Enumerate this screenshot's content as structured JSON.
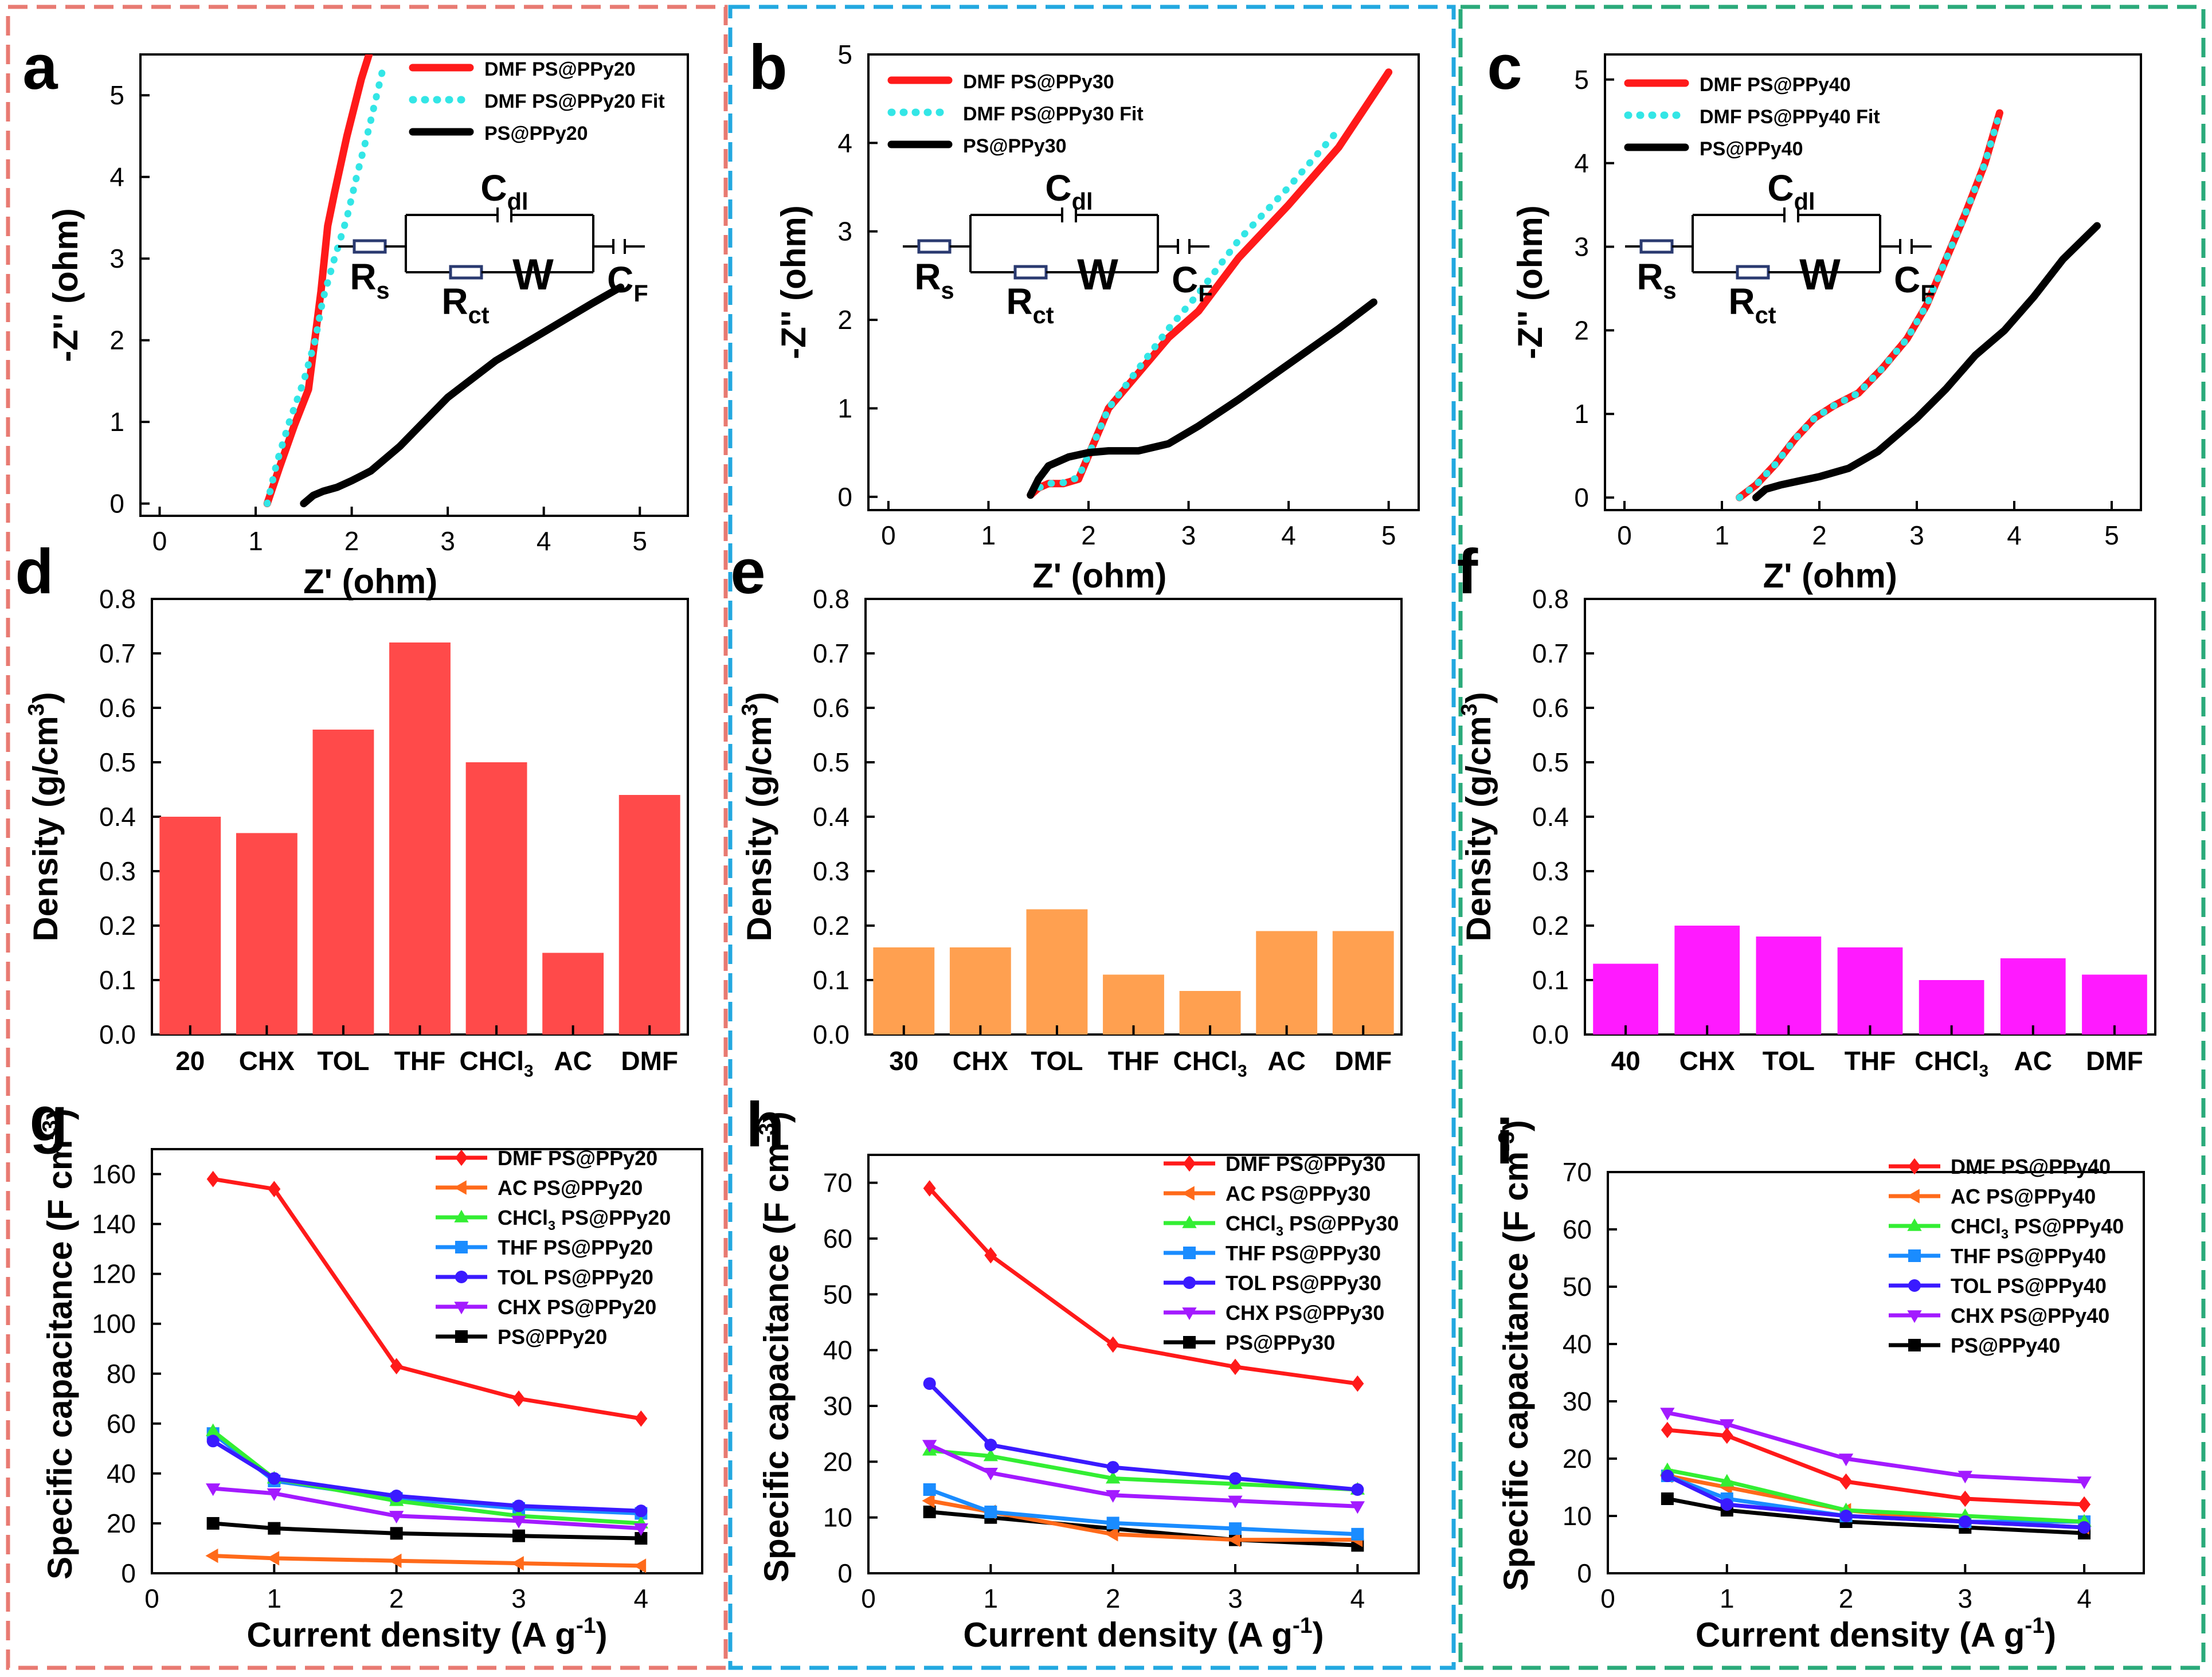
{
  "colors": {
    "red": "#ff1a1a",
    "cyan": "#33e6e6",
    "black": "#000000",
    "orange": "#ff6a1a",
    "green": "#33ee33",
    "blue": "#1a8cff",
    "navy": "#3a1aff",
    "violet": "#a31aff",
    "bar_d": "#ff4a4a",
    "bar_e": "#ffa050",
    "bar_f": "#ff1aff",
    "frame_left": "#e87a72",
    "frame_mid": "#22a8e0",
    "frame_right": "#2aaa7a"
  },
  "chart_data": [
    {
      "id": "a",
      "type": "line",
      "panel_label": "a",
      "xlabel": "Z' (ohm)",
      "ylabel": "-Z'' (ohm)",
      "xlim": [
        -0.2,
        5.5
      ],
      "ylim": [
        -0.15,
        5.5
      ],
      "xticks": [
        "0",
        "1",
        "2",
        "3",
        "4",
        "5"
      ],
      "yticks": [
        "0",
        "1",
        "2",
        "3",
        "4",
        "5"
      ],
      "series": [
        {
          "name": "DMF PS@PPy20",
          "style": "red",
          "x": [
            1.12,
            1.25,
            1.4,
            1.55,
            1.68,
            1.75,
            1.82,
            1.95,
            2.1,
            2.18
          ],
          "y": [
            0,
            0.45,
            0.95,
            1.4,
            2.6,
            3.4,
            3.8,
            4.5,
            5.2,
            5.5
          ]
        },
        {
          "name": "DMF PS@PPy20 Fit",
          "style": "cyan",
          "x": [
            1.12,
            1.22,
            1.35,
            1.5,
            1.62,
            1.7,
            1.82,
            1.95,
            2.05,
            2.18,
            2.32
          ],
          "y": [
            0,
            0.5,
            1.0,
            1.5,
            2.0,
            2.5,
            3.0,
            3.5,
            4.0,
            4.6,
            5.3
          ]
        },
        {
          "name": "PS@PPy20",
          "style": "black",
          "x": [
            1.5,
            1.6,
            1.7,
            1.85,
            2.0,
            2.2,
            2.5,
            3.0,
            3.5,
            4.0,
            4.5,
            4.8
          ],
          "y": [
            0,
            0.1,
            0.15,
            0.2,
            0.28,
            0.4,
            0.7,
            1.3,
            1.75,
            2.1,
            2.45,
            2.65
          ]
        }
      ],
      "circuit": {
        "R1": "R",
        "R1sub": "s",
        "C1": "C",
        "C1sub": "dl",
        "R2": "R",
        "R2sub": "ct",
        "W": "W",
        "C2": "C",
        "C2sub": "F"
      }
    },
    {
      "id": "b",
      "type": "line",
      "panel_label": "b",
      "xlabel": "Z' (ohm)",
      "ylabel": "-Z'' (ohm)",
      "xlim": [
        -0.2,
        5.3
      ],
      "ylim": [
        -0.15,
        5.0
      ],
      "xticks": [
        "0",
        "1",
        "2",
        "3",
        "4",
        "5"
      ],
      "yticks": [
        "0",
        "1",
        "2",
        "3",
        "4",
        "5"
      ],
      "series": [
        {
          "name": "DMF PS@PPy30",
          "style": "red",
          "x": [
            1.42,
            1.5,
            1.6,
            1.75,
            1.9,
            2.05,
            2.2,
            2.5,
            2.8,
            3.1,
            3.5,
            4.0,
            4.5,
            5.0
          ],
          "y": [
            0.02,
            0.1,
            0.15,
            0.15,
            0.2,
            0.6,
            1.0,
            1.4,
            1.8,
            2.1,
            2.7,
            3.3,
            3.95,
            4.8
          ]
        },
        {
          "name": "DMF PS@PPy30 Fit",
          "style": "cyan",
          "x": [
            1.42,
            1.5,
            1.6,
            1.75,
            1.9,
            2.05,
            2.2,
            2.5,
            2.8,
            3.1,
            3.5,
            4.0,
            4.5
          ],
          "y": [
            0.02,
            0.1,
            0.15,
            0.16,
            0.22,
            0.6,
            1.0,
            1.45,
            1.9,
            2.3,
            2.9,
            3.5,
            4.15
          ]
        },
        {
          "name": "PS@PPy30",
          "style": "black",
          "x": [
            1.42,
            1.5,
            1.6,
            1.8,
            2.0,
            2.2,
            2.5,
            2.8,
            3.1,
            3.5,
            4.0,
            4.5,
            4.85
          ],
          "y": [
            0.02,
            0.2,
            0.35,
            0.45,
            0.5,
            0.52,
            0.52,
            0.6,
            0.8,
            1.1,
            1.5,
            1.9,
            2.2
          ]
        }
      ],
      "circuit": {
        "R1": "R",
        "R1sub": "s",
        "C1": "C",
        "C1sub": "dl",
        "R2": "R",
        "R2sub": "ct",
        "W": "W",
        "C2": "C",
        "C2sub": "F"
      }
    },
    {
      "id": "c",
      "type": "line",
      "panel_label": "c",
      "xlabel": "Z' (ohm)",
      "ylabel": "-Z'' (ohm)",
      "xlim": [
        -0.2,
        5.3
      ],
      "ylim": [
        -0.15,
        5.3
      ],
      "xticks": [
        "0",
        "1",
        "2",
        "3",
        "4",
        "5"
      ],
      "yticks": [
        "0",
        "1",
        "2",
        "3",
        "4",
        "5"
      ],
      "series": [
        {
          "name": "DMF PS@PPy40",
          "style": "red",
          "x": [
            1.18,
            1.35,
            1.55,
            1.75,
            1.95,
            2.15,
            2.4,
            2.65,
            2.9,
            3.1,
            3.3,
            3.5,
            3.7,
            3.85
          ],
          "y": [
            0,
            0.15,
            0.4,
            0.7,
            0.95,
            1.1,
            1.25,
            1.55,
            1.9,
            2.3,
            2.85,
            3.4,
            4.0,
            4.6
          ]
        },
        {
          "name": "DMF PS@PPy40 Fit",
          "style": "cyan",
          "x": [
            1.18,
            1.35,
            1.55,
            1.75,
            1.95,
            2.15,
            2.4,
            2.65,
            2.9,
            3.1,
            3.3,
            3.5,
            3.7,
            3.85
          ],
          "y": [
            0,
            0.15,
            0.4,
            0.7,
            0.95,
            1.1,
            1.25,
            1.55,
            1.9,
            2.3,
            2.85,
            3.4,
            4.0,
            4.6
          ]
        },
        {
          "name": "PS@PPy40",
          "style": "black",
          "x": [
            1.35,
            1.45,
            1.6,
            1.8,
            2.0,
            2.3,
            2.6,
            3.0,
            3.3,
            3.6,
            3.9,
            4.2,
            4.5,
            4.85
          ],
          "y": [
            0,
            0.1,
            0.15,
            0.2,
            0.25,
            0.35,
            0.55,
            0.95,
            1.3,
            1.7,
            2.0,
            2.4,
            2.85,
            3.25
          ]
        }
      ],
      "circuit": {
        "R1": "R",
        "R1sub": "s",
        "C1": "C",
        "C1sub": "dl",
        "R2": "R",
        "R2sub": "ct",
        "W": "W",
        "C2": "C",
        "C2sub": "F"
      }
    },
    {
      "id": "d",
      "type": "bar",
      "panel_label": "d",
      "ylabel": "Density (g/cm",
      "ylabel_sup": "3",
      "ylabel_end": ")",
      "ylim": [
        0,
        0.8
      ],
      "yticks": [
        "0.0",
        "0.1",
        "0.2",
        "0.3",
        "0.4",
        "0.5",
        "0.6",
        "0.7",
        "0.8"
      ],
      "categories": [
        "20",
        "CHX",
        "TOL",
        "THF",
        "CHCl",
        "AC",
        "DMF"
      ],
      "category_sub": [
        "",
        "",
        "",
        "",
        "3",
        "",
        ""
      ],
      "values": [
        0.4,
        0.37,
        0.56,
        0.72,
        0.5,
        0.15,
        0.44
      ],
      "bar_color": "bar_d"
    },
    {
      "id": "e",
      "type": "bar",
      "panel_label": "e",
      "ylabel": "Density (g/cm",
      "ylabel_sup": "3",
      "ylabel_end": ")",
      "ylim": [
        0,
        0.8
      ],
      "yticks": [
        "0.0",
        "0.1",
        "0.2",
        "0.3",
        "0.4",
        "0.5",
        "0.6",
        "0.7",
        "0.8"
      ],
      "categories": [
        "30",
        "CHX",
        "TOL",
        "THF",
        "CHCl",
        "AC",
        "DMF"
      ],
      "category_sub": [
        "",
        "",
        "",
        "",
        "3",
        "",
        ""
      ],
      "values": [
        0.16,
        0.16,
        0.23,
        0.11,
        0.08,
        0.19,
        0.19
      ],
      "bar_color": "bar_e"
    },
    {
      "id": "f",
      "type": "bar",
      "panel_label": "f",
      "ylabel": "Density (g/cm",
      "ylabel_sup": "3",
      "ylabel_end": ")",
      "ylim": [
        0,
        0.8
      ],
      "yticks": [
        "0.0",
        "0.1",
        "0.2",
        "0.3",
        "0.4",
        "0.5",
        "0.6",
        "0.7",
        "0.8"
      ],
      "categories": [
        "40",
        "CHX",
        "TOL",
        "THF",
        "CHCl",
        "AC",
        "DMF"
      ],
      "category_sub": [
        "",
        "",
        "",
        "",
        "3",
        "",
        ""
      ],
      "values": [
        0.13,
        0.2,
        0.18,
        0.16,
        0.1,
        0.14,
        0.11
      ],
      "bar_color": "bar_f"
    },
    {
      "id": "g",
      "type": "line",
      "panel_label": "g",
      "xlabel": "Current density (A g",
      "xlabel_sup": "-1",
      "xlabel_end": ")",
      "ylabel": "Specific capacitance (F cm",
      "ylabel_sup": "-3",
      "ylabel_end": ")",
      "xlim": [
        0,
        4.5
      ],
      "ylim": [
        0,
        170
      ],
      "xticks": [
        "0",
        "1",
        "2",
        "3",
        "4"
      ],
      "yticks": [
        "0",
        "20",
        "40",
        "60",
        "80",
        "100",
        "120",
        "140",
        "160"
      ],
      "x": [
        0.5,
        1,
        2,
        3,
        4
      ],
      "series": [
        {
          "name": "DMF PS@PPy20",
          "style": "red",
          "marker": "diamond",
          "values": [
            158,
            154,
            83,
            70,
            62
          ]
        },
        {
          "name": "AC PS@PPy20",
          "style": "orange",
          "marker": "tri-left",
          "values": [
            7,
            6,
            5,
            4,
            3
          ]
        },
        {
          "name": "CHCl",
          "name_sub": "3",
          "name_end": " PS@PPy20",
          "style": "green",
          "marker": "tri-up",
          "values": [
            57,
            38,
            29,
            23,
            20
          ]
        },
        {
          "name": "THF PS@PPy20",
          "style": "blue",
          "marker": "square",
          "values": [
            56,
            37,
            30,
            26,
            24
          ]
        },
        {
          "name": "TOL PS@PPy20",
          "style": "navy",
          "marker": "circle",
          "values": [
            53,
            38,
            31,
            27,
            25
          ]
        },
        {
          "name": "CHX PS@PPy20",
          "style": "violet",
          "marker": "tri-down",
          "values": [
            34,
            32,
            23,
            21,
            18
          ]
        },
        {
          "name": "PS@PPy20",
          "style": "black",
          "marker": "square",
          "values": [
            20,
            18,
            16,
            15,
            14
          ]
        }
      ]
    },
    {
      "id": "h",
      "type": "line",
      "panel_label": "h",
      "xlabel": "Current density (A g",
      "xlabel_sup": "-1",
      "xlabel_end": ")",
      "ylabel": "Specific capacitance (F cm",
      "ylabel_sup": "-3",
      "ylabel_end": ")",
      "xlim": [
        0,
        4.5
      ],
      "ylim": [
        0,
        75
      ],
      "xticks": [
        "0",
        "1",
        "2",
        "3",
        "4"
      ],
      "yticks": [
        "0",
        "10",
        "20",
        "30",
        "40",
        "50",
        "60",
        "70"
      ],
      "x": [
        0.5,
        1,
        2,
        3,
        4
      ],
      "series": [
        {
          "name": "DMF PS@PPy30",
          "style": "red",
          "marker": "diamond",
          "values": [
            69,
            57,
            41,
            37,
            34
          ]
        },
        {
          "name": "AC PS@PPy30",
          "style": "orange",
          "marker": "tri-left",
          "values": [
            13,
            11,
            7,
            6,
            6
          ]
        },
        {
          "name": "CHCl",
          "name_sub": "3",
          "name_end": " PS@PPy30",
          "style": "green",
          "marker": "tri-up",
          "values": [
            22,
            21,
            17,
            16,
            15
          ]
        },
        {
          "name": "THF PS@PPy30",
          "style": "blue",
          "marker": "square",
          "values": [
            15,
            11,
            9,
            8,
            7
          ]
        },
        {
          "name": "TOL PS@PPy30",
          "style": "navy",
          "marker": "circle",
          "values": [
            34,
            23,
            19,
            17,
            15
          ]
        },
        {
          "name": "CHX PS@PPy30",
          "style": "violet",
          "marker": "tri-down",
          "values": [
            23,
            18,
            14,
            13,
            12
          ]
        },
        {
          "name": "PS@PPy30",
          "style": "black",
          "marker": "square",
          "values": [
            11,
            10,
            8,
            6,
            5
          ]
        }
      ]
    },
    {
      "id": "i",
      "type": "line",
      "panel_label": "i",
      "xlabel": "Current density (A g",
      "xlabel_sup": "-1",
      "xlabel_end": ")",
      "ylabel": "Specific capacitance (F cm",
      "ylabel_sup": "-3",
      "ylabel_end": ")",
      "xlim": [
        0,
        4.5
      ],
      "ylim": [
        0,
        70
      ],
      "xticks": [
        "0",
        "1",
        "2",
        "3",
        "4"
      ],
      "yticks": [
        "0",
        "10",
        "20",
        "30",
        "40",
        "50",
        "60",
        "70"
      ],
      "x": [
        0.5,
        1,
        2,
        3,
        4
      ],
      "series": [
        {
          "name": "DMF PS@PPy40",
          "style": "red",
          "marker": "diamond",
          "values": [
            25,
            24,
            16,
            13,
            12
          ]
        },
        {
          "name": "AC PS@PPy40",
          "style": "orange",
          "marker": "tri-left",
          "values": [
            17,
            15,
            11,
            9,
            8
          ]
        },
        {
          "name": "CHCl",
          "name_sub": "3",
          "name_end": " PS@PPy40",
          "style": "green",
          "marker": "tri-up",
          "values": [
            18,
            16,
            11,
            10,
            9
          ]
        },
        {
          "name": "THF PS@PPy40",
          "style": "blue",
          "marker": "square",
          "values": [
            17,
            13,
            10,
            9,
            9
          ]
        },
        {
          "name": "TOL PS@PPy40",
          "style": "navy",
          "marker": "circle",
          "values": [
            17,
            12,
            10,
            9,
            8
          ]
        },
        {
          "name": "CHX PS@PPy40",
          "style": "violet",
          "marker": "tri-down",
          "values": [
            28,
            26,
            20,
            17,
            16
          ]
        },
        {
          "name": "PS@PPy40",
          "style": "black",
          "marker": "square",
          "values": [
            13,
            11,
            9,
            8,
            7
          ]
        }
      ]
    }
  ]
}
